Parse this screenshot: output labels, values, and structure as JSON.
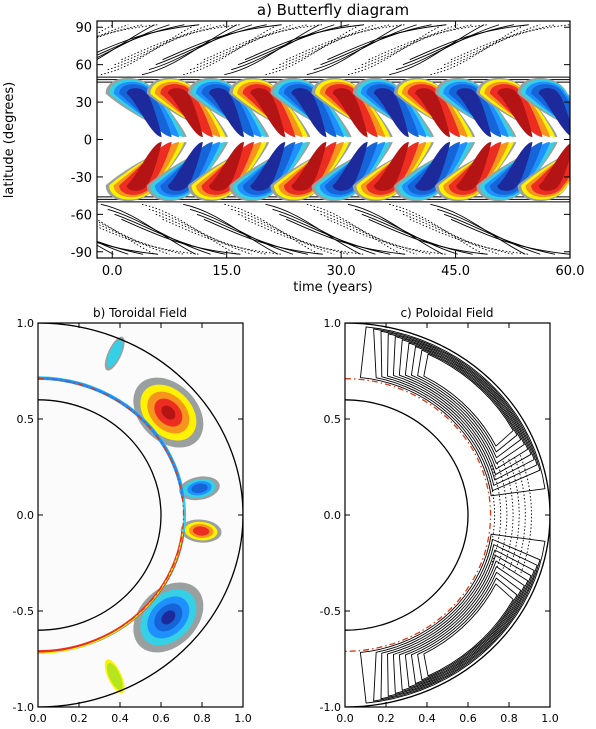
{
  "colors": {
    "strong_positive": "#b41414",
    "positive": "#ee2d22",
    "mid_positive": "#f7941d",
    "weak_positive": "#fff200",
    "zero_band": "#9aa09f",
    "weak_negative": "#35d0e6",
    "negative": "#1e90ff",
    "strong_negative": "#1c2a9c",
    "tachocline_line": "#d83a18"
  },
  "chart_data": [
    {
      "panel": "a",
      "type": "heatmap",
      "title": "a) Butterfly diagram",
      "xlabel": "time (years)",
      "ylabel": "latitude (degrees)",
      "xlim": [
        -2,
        60
      ],
      "ylim": [
        -95,
        95
      ],
      "x_ticks": [
        "0.0",
        "15.0",
        "30.0",
        "45.0",
        "60.0"
      ],
      "y_ticks": [
        "90",
        "60",
        "30",
        "0",
        "-30",
        "-60",
        "-90"
      ],
      "cycle_period_years": 10.8,
      "blob_times_years": [
        3.2,
        8.6,
        14.0,
        19.4,
        24.8,
        30.2,
        35.6,
        41.0,
        46.4,
        51.8,
        57.2
      ],
      "contours": "solid = positive poloidal field, dotted = negative poloidal field"
    },
    {
      "panel": "b",
      "type": "heatmap",
      "title": "b) Toroidal Field",
      "x_ticks": [
        "0.0",
        "0.2",
        "0.4",
        "0.6",
        "0.8",
        "1.0"
      ],
      "y_ticks": [
        "1.0",
        "0.5",
        "0.0",
        "-0.5",
        "-1.0"
      ],
      "xlim": [
        0,
        1
      ],
      "ylim": [
        -1,
        1
      ],
      "inner_radius": 0.6,
      "tachocline_radius": 0.71,
      "outer_radius": 1.0
    },
    {
      "panel": "c",
      "type": "heatmap",
      "title": "c) Poloidal Field",
      "x_ticks": [
        "0.0",
        "0.2",
        "0.4",
        "0.6",
        "0.8",
        "1.0"
      ],
      "y_ticks": [
        "1.0",
        "0.5",
        "0.0",
        "-0.5",
        "-1.0"
      ],
      "xlim": [
        0,
        1
      ],
      "ylim": [
        -1,
        1
      ],
      "inner_radius": 0.6,
      "tachocline_radius": 0.71,
      "outer_radius": 1.0
    }
  ]
}
